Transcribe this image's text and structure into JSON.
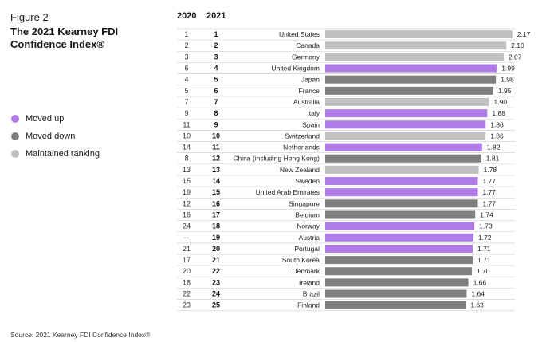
{
  "figure_label": "Figure 2",
  "title": "The 2021 Kearney FDI Confidence Index®",
  "legend": [
    {
      "label": "Moved up",
      "color": "#b07de8"
    },
    {
      "label": "Moved down",
      "color": "#7f7f7f"
    },
    {
      "label": "Maintained ranking",
      "color": "#c0c0c0"
    }
  ],
  "source": "Source: 2021 Kearney FDI Confidence Index®",
  "chart_data": {
    "type": "bar",
    "orientation": "horizontal",
    "title": "The 2021 Kearney FDI Confidence Index®",
    "columns": {
      "prev": "2020",
      "cur": "2021"
    },
    "xlim": [
      0,
      2.2
    ],
    "colors": {
      "up": "#b07de8",
      "down": "#7f7f7f",
      "same": "#c0c0c0"
    },
    "rows": [
      {
        "prev": "1",
        "cur": "1",
        "country": "United States",
        "value": 2.17,
        "value_label": "2.17",
        "status": "same"
      },
      {
        "prev": "2",
        "cur": "2",
        "country": "Canada",
        "value": 2.1,
        "value_label": "2.10",
        "status": "same"
      },
      {
        "prev": "3",
        "cur": "3",
        "country": "Germany",
        "value": 2.07,
        "value_label": "2.07",
        "status": "same"
      },
      {
        "prev": "6",
        "cur": "4",
        "country": "United Kingdom",
        "value": 1.99,
        "value_label": "1.99",
        "status": "up"
      },
      {
        "prev": "4",
        "cur": "5",
        "country": "Japan",
        "value": 1.98,
        "value_label": "1.98",
        "status": "down"
      },
      {
        "prev": "5",
        "cur": "6",
        "country": "France",
        "value": 1.95,
        "value_label": "1.95",
        "status": "down"
      },
      {
        "prev": "7",
        "cur": "7",
        "country": "Australia",
        "value": 1.9,
        "value_label": "1.90",
        "status": "same"
      },
      {
        "prev": "9",
        "cur": "8",
        "country": "Italy",
        "value": 1.88,
        "value_label": "1.88",
        "status": "up"
      },
      {
        "prev": "11",
        "cur": "9",
        "country": "Spain",
        "value": 1.86,
        "value_label": "1.86",
        "status": "up"
      },
      {
        "prev": "10",
        "cur": "10",
        "country": "Switzerland",
        "value": 1.86,
        "value_label": "1.86",
        "status": "same"
      },
      {
        "prev": "14",
        "cur": "11",
        "country": "Netherlands",
        "value": 1.82,
        "value_label": "1.82",
        "status": "up"
      },
      {
        "prev": "8",
        "cur": "12",
        "country": "China (including Hong Kong)",
        "value": 1.81,
        "value_label": "1.81",
        "status": "down"
      },
      {
        "prev": "13",
        "cur": "13",
        "country": "New Zealand",
        "value": 1.78,
        "value_label": "1.78",
        "status": "same"
      },
      {
        "prev": "15",
        "cur": "14",
        "country": "Sweden",
        "value": 1.77,
        "value_label": "1.77",
        "status": "up"
      },
      {
        "prev": "19",
        "cur": "15",
        "country": "United Arab Emirates",
        "value": 1.77,
        "value_label": "1.77",
        "status": "up"
      },
      {
        "prev": "12",
        "cur": "16",
        "country": "Singapore",
        "value": 1.77,
        "value_label": "1.77",
        "status": "down"
      },
      {
        "prev": "16",
        "cur": "17",
        "country": "Belgium",
        "value": 1.74,
        "value_label": "1.74",
        "status": "down"
      },
      {
        "prev": "24",
        "cur": "18",
        "country": "Norway",
        "value": 1.73,
        "value_label": "1.73",
        "status": "up"
      },
      {
        "prev": "--",
        "cur": "19",
        "country": "Austria",
        "value": 1.72,
        "value_label": "1.72",
        "status": "up"
      },
      {
        "prev": "21",
        "cur": "20",
        "country": "Portugal",
        "value": 1.71,
        "value_label": "1.71",
        "status": "up"
      },
      {
        "prev": "17",
        "cur": "21",
        "country": "South Korea",
        "value": 1.71,
        "value_label": "1.71",
        "status": "down"
      },
      {
        "prev": "20",
        "cur": "22",
        "country": "Denmark",
        "value": 1.7,
        "value_label": "1.70",
        "status": "down"
      },
      {
        "prev": "18",
        "cur": "23",
        "country": "Ireland",
        "value": 1.66,
        "value_label": "1.66",
        "status": "down"
      },
      {
        "prev": "22",
        "cur": "24",
        "country": "Brazil",
        "value": 1.64,
        "value_label": "1.64",
        "status": "down"
      },
      {
        "prev": "23",
        "cur": "25",
        "country": "Finland",
        "value": 1.63,
        "value_label": "1.63",
        "status": "down"
      }
    ]
  }
}
